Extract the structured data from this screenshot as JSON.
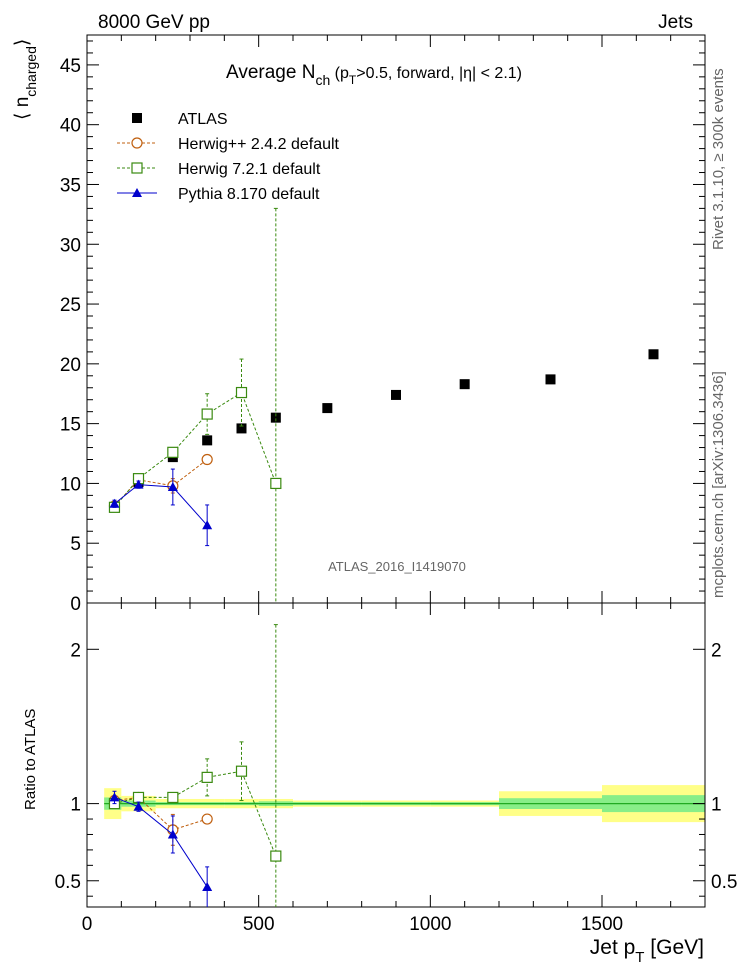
{
  "header": {
    "left": "8000 GeV pp",
    "right": "Jets"
  },
  "side_labels": {
    "rivet": "Rivet 3.1.10, ≥ 300k events",
    "mcplots": "mcplots.cern.ch [arXiv:1306.3436]"
  },
  "watermark": "ATLAS_2016_I1419070",
  "colors": {
    "atlas": "#000000",
    "herwigpp": "#c06010",
    "herwig7": "#3a8a10",
    "pythia": "#0000cc",
    "band_outer": "#ffff88",
    "band_inner": "#88ee88",
    "ratio_line": "#22aa22"
  },
  "chart_data": [
    {
      "type": "scatter",
      "title": "Average N",
      "title_sub": "ch",
      "title_rest_pre": " (p",
      "title_rest_sub": "T",
      "title_rest_post": ">0.5, forward, |η| < 2.1)",
      "ylabel": "⟨ n",
      "ylabel_sub": "charged",
      "ylabel_end": "⟩",
      "xlim": [
        0,
        1800
      ],
      "ylim": [
        0,
        47.5
      ],
      "yticks": [
        "0",
        "5",
        "10",
        "15",
        "20",
        "25",
        "30",
        "35",
        "40",
        "45"
      ],
      "legend_position": "top-left",
      "series": [
        {
          "name": "ATLAS",
          "marker": "filled-square",
          "x": [
            80,
            150,
            250,
            350,
            450,
            550,
            700,
            900,
            1100,
            1350,
            1650
          ],
          "y": [
            8.0,
            10.1,
            12.2,
            13.6,
            14.6,
            15.5,
            16.3,
            17.4,
            18.3,
            18.7,
            20.8
          ]
        },
        {
          "name": "Herwig++ 2.4.2 default",
          "marker": "open-circle",
          "dashed": true,
          "x": [
            80,
            150,
            250,
            350
          ],
          "y": [
            8.1,
            10.3,
            9.8,
            12.0
          ],
          "err": [
            0.2,
            0.3,
            0.6,
            0.3
          ]
        },
        {
          "name": "Herwig 7.2.1 default",
          "marker": "open-square",
          "dashed": true,
          "x": [
            80,
            150,
            250,
            350,
            450,
            550
          ],
          "y": [
            8.0,
            10.4,
            12.6,
            15.8,
            17.6,
            10.0
          ],
          "err": [
            0.2,
            0.3,
            0.4,
            1.7,
            2.8,
            23.0
          ]
        },
        {
          "name": "Pythia 8.170 default",
          "marker": "filled-triangle",
          "x": [
            80,
            150,
            250,
            350
          ],
          "y": [
            8.3,
            9.9,
            9.7,
            6.5
          ],
          "err": [
            0.3,
            0.3,
            1.5,
            1.7
          ]
        }
      ]
    },
    {
      "type": "scatter",
      "ylabel": "Ratio to ATLAS",
      "xlabel": "Jet p",
      "xlabel_sub": "T",
      "xlabel_end": " [GeV]",
      "xlim": [
        0,
        1800
      ],
      "ylim": [
        0.33,
        2.3
      ],
      "xticks": [
        "0",
        "500",
        "1000",
        "1500"
      ],
      "yticks": [
        "0.5",
        "1",
        "2"
      ],
      "bands": [
        {
          "x": [
            50,
            100
          ],
          "outer": 0.1,
          "inner": 0.04
        },
        {
          "x": [
            100,
            200
          ],
          "outer": 0.05,
          "inner": 0.02
        },
        {
          "x": [
            200,
            300
          ],
          "outer": 0.03,
          "inner": 0.01
        },
        {
          "x": [
            300,
            400
          ],
          "outer": 0.03,
          "inner": 0.01
        },
        {
          "x": [
            400,
            500
          ],
          "outer": 0.03,
          "inner": 0.01
        },
        {
          "x": [
            500,
            600
          ],
          "outer": 0.03,
          "inner": 0.015
        },
        {
          "x": [
            600,
            800
          ],
          "outer": 0.02,
          "inner": 0.01
        },
        {
          "x": [
            800,
            1000
          ],
          "outer": 0.02,
          "inner": 0.01
        },
        {
          "x": [
            1000,
            1200
          ],
          "outer": 0.02,
          "inner": 0.01
        },
        {
          "x": [
            1200,
            1500
          ],
          "outer": 0.08,
          "inner": 0.035
        },
        {
          "x": [
            1500,
            1800
          ],
          "outer": 0.12,
          "inner": 0.055
        }
      ],
      "series": [
        {
          "name": "Herwig++ 2.4.2 default",
          "marker": "open-circle",
          "dashed": true,
          "x": [
            80,
            150,
            250,
            350
          ],
          "y": [
            1.02,
            1.04,
            0.83,
            0.9
          ],
          "err": [
            0.02,
            0.02,
            0.1,
            0.02
          ]
        },
        {
          "name": "Herwig 7.2.1 default",
          "marker": "open-square",
          "dashed": true,
          "x": [
            80,
            150,
            250,
            350,
            450,
            550
          ],
          "y": [
            1.0,
            1.04,
            1.04,
            1.17,
            1.21,
            0.66
          ],
          "err": [
            0.02,
            0.02,
            0.03,
            0.12,
            0.19,
            1.5
          ]
        },
        {
          "name": "Pythia 8.170 default",
          "marker": "filled-triangle",
          "x": [
            80,
            150,
            250,
            350
          ],
          "y": [
            1.04,
            0.98,
            0.8,
            0.46
          ],
          "err": [
            0.04,
            0.03,
            0.12,
            0.13
          ]
        }
      ]
    }
  ]
}
